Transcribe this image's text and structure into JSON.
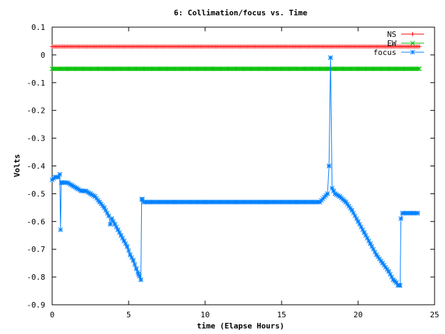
{
  "chart_data": {
    "type": "line",
    "title": "6: Collimation/focus vs. Time",
    "xlabel": "time (Elapse Hours)",
    "ylabel": "Volts",
    "xlim": [
      0,
      25
    ],
    "ylim": [
      -0.9,
      0.1
    ],
    "xticks": [
      0,
      5,
      10,
      15,
      20,
      25
    ],
    "yticks": [
      0.1,
      0,
      -0.1,
      -0.2,
      -0.3,
      -0.4,
      -0.5,
      -0.6,
      -0.7,
      -0.8,
      -0.9
    ],
    "grid": false,
    "legend_position": "top-right",
    "series": [
      {
        "name": "NS",
        "color": "#ff0000",
        "marker": "plus",
        "x": [
          0.0,
          24.0
        ],
        "y": [
          0.03,
          0.03
        ],
        "sample_step": 0.1
      },
      {
        "name": "EW",
        "color": "#00c000",
        "marker": "x",
        "x": [
          0.0,
          24.0
        ],
        "y": [
          -0.05,
          -0.05
        ],
        "sample_step": 0.1
      },
      {
        "name": "focus",
        "color": "#0080ff",
        "marker": "star",
        "x": [
          0.0,
          0.2,
          0.4,
          0.5,
          0.55,
          0.6,
          0.65,
          0.8,
          1.0,
          1.3,
          1.6,
          1.9,
          2.2,
          2.5,
          2.8,
          3.1,
          3.4,
          3.7,
          3.8,
          3.9,
          4.1,
          4.3,
          4.5,
          4.7,
          4.9,
          5.1,
          5.3,
          5.5,
          5.65,
          5.8,
          5.85,
          5.9,
          6.0,
          6.2,
          8.0,
          10.0,
          12.0,
          14.0,
          16.0,
          17.5,
          18.0,
          18.1,
          18.2,
          18.3,
          18.4,
          18.5,
          18.8,
          19.2,
          19.6,
          20.0,
          20.4,
          20.8,
          21.2,
          21.6,
          22.0,
          22.3,
          22.5,
          22.6,
          22.7,
          22.75,
          22.8,
          22.9,
          23.2,
          23.6,
          23.9
        ],
        "y": [
          -0.45,
          -0.44,
          -0.44,
          -0.43,
          -0.63,
          -0.46,
          -0.46,
          -0.46,
          -0.46,
          -0.47,
          -0.48,
          -0.49,
          -0.49,
          -0.5,
          -0.51,
          -0.53,
          -0.55,
          -0.58,
          -0.61,
          -0.59,
          -0.61,
          -0.63,
          -0.65,
          -0.67,
          -0.69,
          -0.72,
          -0.74,
          -0.77,
          -0.79,
          -0.81,
          -0.52,
          -0.52,
          -0.53,
          -0.53,
          -0.53,
          -0.53,
          -0.53,
          -0.53,
          -0.53,
          -0.53,
          -0.5,
          -0.4,
          -0.01,
          -0.48,
          -0.49,
          -0.5,
          -0.51,
          -0.53,
          -0.56,
          -0.6,
          -0.64,
          -0.68,
          -0.72,
          -0.75,
          -0.78,
          -0.81,
          -0.82,
          -0.83,
          -0.83,
          -0.83,
          -0.59,
          -0.57,
          -0.57,
          -0.57,
          -0.57
        ],
        "sample_step": 0.1
      }
    ]
  }
}
